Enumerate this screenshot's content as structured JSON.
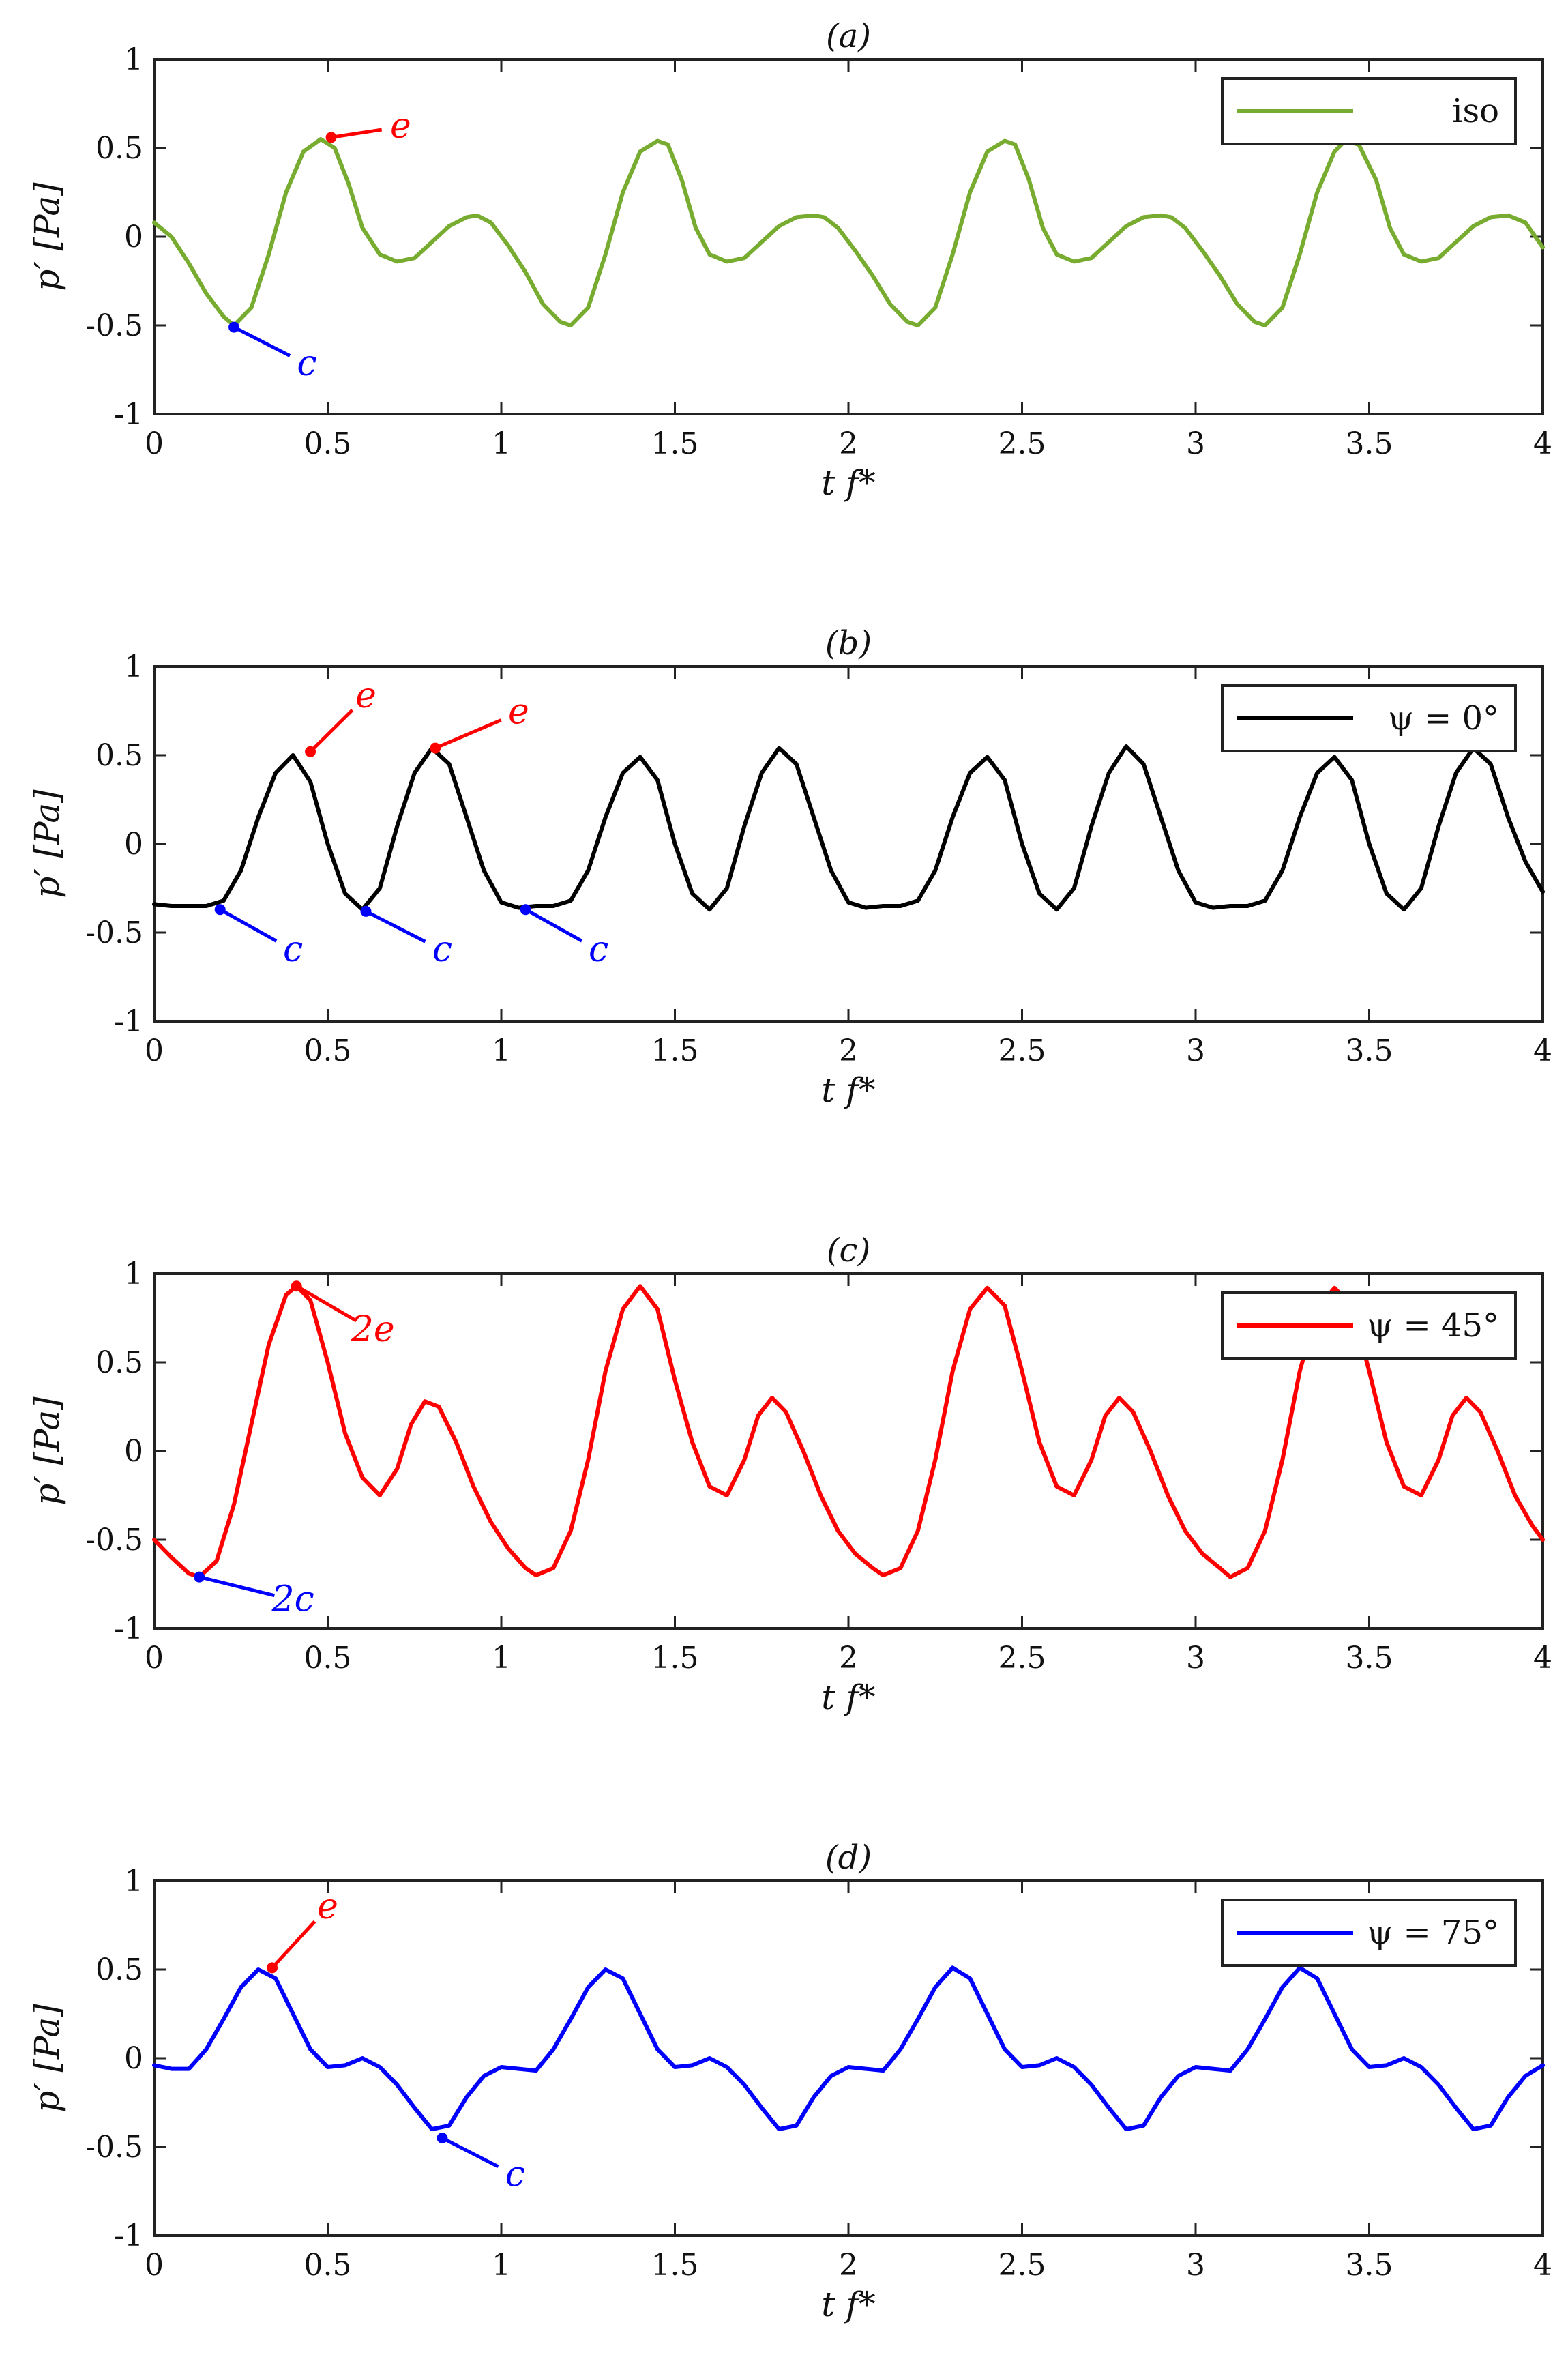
{
  "chart_data": [
    {
      "type": "line",
      "title": "(a)",
      "xlabel": "t f*",
      "ylabel": "p′ [Pa]",
      "xlim": [
        0,
        4
      ],
      "ylim": [
        -1,
        1
      ],
      "xticks": [
        "0",
        "0.5",
        "1",
        "1.5",
        "2",
        "2.5",
        "3",
        "3.5",
        "4"
      ],
      "yticks": [
        "1",
        "0.5",
        "0",
        "-0.5",
        "-1"
      ],
      "legend": "top-right",
      "series": [
        {
          "name": "iso",
          "color": "#77ac30",
          "x": [
            0,
            0.05,
            0.1,
            0.15,
            0.2,
            0.23,
            0.28,
            0.33,
            0.38,
            0.43,
            0.48,
            0.52,
            0.56,
            0.6,
            0.65,
            0.7,
            0.75,
            0.8,
            0.85,
            0.9,
            0.93,
            0.97,
            1.02,
            1.07,
            1.12,
            1.17,
            1.2,
            1.25,
            1.3,
            1.35,
            1.4,
            1.45,
            1.48,
            1.52,
            1.56,
            1.6,
            1.65,
            1.7,
            1.75,
            1.8,
            1.85,
            1.9,
            1.93,
            1.97,
            2.02,
            2.07,
            2.12,
            2.17,
            2.2,
            2.25,
            2.3,
            2.35,
            2.4,
            2.45,
            2.48,
            2.52,
            2.56,
            2.6,
            2.65,
            2.7,
            2.75,
            2.8,
            2.85,
            2.9,
            2.93,
            2.97,
            3.02,
            3.07,
            3.12,
            3.17,
            3.2,
            3.25,
            3.3,
            3.35,
            3.4,
            3.43,
            3.47,
            3.52,
            3.56,
            3.6,
            3.65,
            3.7,
            3.75,
            3.8,
            3.85,
            3.9,
            3.95,
            4.0
          ],
          "y": [
            0.08,
            0.0,
            -0.15,
            -0.32,
            -0.45,
            -0.5,
            -0.4,
            -0.1,
            0.25,
            0.48,
            0.55,
            0.5,
            0.3,
            0.05,
            -0.1,
            -0.14,
            -0.12,
            -0.03,
            0.06,
            0.11,
            0.12,
            0.08,
            -0.05,
            -0.2,
            -0.38,
            -0.48,
            -0.5,
            -0.4,
            -0.1,
            0.25,
            0.48,
            0.54,
            0.52,
            0.32,
            0.05,
            -0.1,
            -0.14,
            -0.12,
            -0.03,
            0.06,
            0.11,
            0.12,
            0.11,
            0.05,
            -0.08,
            -0.22,
            -0.38,
            -0.48,
            -0.5,
            -0.4,
            -0.1,
            0.25,
            0.48,
            0.54,
            0.52,
            0.32,
            0.05,
            -0.1,
            -0.14,
            -0.12,
            -0.03,
            0.06,
            0.11,
            0.12,
            0.11,
            0.05,
            -0.08,
            -0.22,
            -0.38,
            -0.48,
            -0.5,
            -0.4,
            -0.1,
            0.25,
            0.48,
            0.54,
            0.52,
            0.32,
            0.05,
            -0.1,
            -0.14,
            -0.12,
            -0.03,
            0.06,
            0.11,
            0.12,
            0.08,
            -0.06
          ]
        }
      ],
      "annotations": [
        {
          "text": "e",
          "color": "#ff0000",
          "at": [
            0.51,
            0.56
          ],
          "label_at": [
            0.71,
            0.62
          ]
        },
        {
          "text": "c",
          "color": "#0000ff",
          "at": [
            0.23,
            -0.51
          ],
          "label_at": [
            0.44,
            -0.72
          ]
        }
      ]
    },
    {
      "type": "line",
      "title": "(b)",
      "xlabel": "t f*",
      "ylabel": "p′ [Pa]",
      "xlim": [
        0,
        4
      ],
      "ylim": [
        -1,
        1
      ],
      "xticks": [
        "0",
        "0.5",
        "1",
        "1.5",
        "2",
        "2.5",
        "3",
        "3.5",
        "4"
      ],
      "yticks": [
        "1",
        "0.5",
        "0",
        "-0.5",
        "-1"
      ],
      "legend": "top-right",
      "series": [
        {
          "name": "ψ = 0°",
          "color": "#000000",
          "x": [
            0,
            0.05,
            0.1,
            0.15,
            0.2,
            0.25,
            0.3,
            0.35,
            0.4,
            0.45,
            0.5,
            0.55,
            0.6,
            0.65,
            0.7,
            0.75,
            0.8,
            0.85,
            0.9,
            0.95,
            1.0,
            1.05,
            1.1,
            1.15,
            1.2,
            1.25,
            1.3,
            1.35,
            1.4,
            1.45,
            1.5,
            1.55,
            1.6,
            1.65,
            1.7,
            1.75,
            1.8,
            1.85,
            1.9,
            1.95,
            2.0,
            2.05,
            2.1,
            2.15,
            2.2,
            2.25,
            2.3,
            2.35,
            2.4,
            2.45,
            2.5,
            2.55,
            2.6,
            2.65,
            2.7,
            2.75,
            2.8,
            2.85,
            2.9,
            2.95,
            3.0,
            3.05,
            3.1,
            3.15,
            3.2,
            3.25,
            3.3,
            3.35,
            3.4,
            3.45,
            3.5,
            3.55,
            3.6,
            3.65,
            3.7,
            3.75,
            3.8,
            3.85,
            3.9,
            3.95,
            4.0
          ],
          "y": [
            -0.34,
            -0.35,
            -0.35,
            -0.35,
            -0.32,
            -0.15,
            0.15,
            0.4,
            0.5,
            0.35,
            0.0,
            -0.28,
            -0.37,
            -0.25,
            0.1,
            0.4,
            0.54,
            0.45,
            0.15,
            -0.15,
            -0.33,
            -0.36,
            -0.35,
            -0.35,
            -0.32,
            -0.15,
            0.15,
            0.4,
            0.49,
            0.36,
            0.0,
            -0.28,
            -0.37,
            -0.25,
            0.1,
            0.4,
            0.54,
            0.45,
            0.15,
            -0.15,
            -0.33,
            -0.36,
            -0.35,
            -0.35,
            -0.32,
            -0.15,
            0.15,
            0.4,
            0.49,
            0.36,
            0.0,
            -0.28,
            -0.37,
            -0.25,
            0.1,
            0.4,
            0.55,
            0.45,
            0.15,
            -0.15,
            -0.33,
            -0.36,
            -0.35,
            -0.35,
            -0.32,
            -0.15,
            0.15,
            0.4,
            0.49,
            0.36,
            0.0,
            -0.28,
            -0.37,
            -0.25,
            0.1,
            0.4,
            0.54,
            0.45,
            0.15,
            -0.1,
            -0.27
          ]
        }
      ],
      "annotations": [
        {
          "text": "e",
          "color": "#ff0000",
          "at": [
            0.45,
            0.52
          ],
          "label_at": [
            0.61,
            0.83
          ]
        },
        {
          "text": "e",
          "color": "#ff0000",
          "at": [
            0.81,
            0.54
          ],
          "label_at": [
            1.05,
            0.74
          ]
        },
        {
          "text": "c",
          "color": "#0000ff",
          "at": [
            0.19,
            -0.37
          ],
          "label_at": [
            0.4,
            -0.6
          ]
        },
        {
          "text": "c",
          "color": "#0000ff",
          "at": [
            0.61,
            -0.38
          ],
          "label_at": [
            0.83,
            -0.6
          ]
        },
        {
          "text": "c",
          "color": "#0000ff",
          "at": [
            1.07,
            -0.37
          ],
          "label_at": [
            1.28,
            -0.6
          ]
        }
      ]
    },
    {
      "type": "line",
      "title": "(c)",
      "xlabel": "t f*",
      "ylabel": "p′ [Pa]",
      "xlim": [
        0,
        4
      ],
      "ylim": [
        -1,
        1
      ],
      "xticks": [
        "0",
        "0.5",
        "1",
        "1.5",
        "2",
        "2.5",
        "3",
        "3.5",
        "4"
      ],
      "yticks": [
        "1",
        "0.5",
        "0",
        "-0.5",
        "-1"
      ],
      "legend": "top-right",
      "series": [
        {
          "name": "ψ = 45°",
          "color": "#ff0000",
          "x": [
            0,
            0.05,
            0.1,
            0.13,
            0.18,
            0.23,
            0.28,
            0.33,
            0.38,
            0.41,
            0.45,
            0.5,
            0.55,
            0.6,
            0.65,
            0.7,
            0.74,
            0.78,
            0.82,
            0.87,
            0.92,
            0.97,
            1.02,
            1.07,
            1.1,
            1.15,
            1.2,
            1.25,
            1.3,
            1.35,
            1.4,
            1.45,
            1.5,
            1.55,
            1.6,
            1.65,
            1.7,
            1.74,
            1.78,
            1.82,
            1.87,
            1.92,
            1.97,
            2.02,
            2.07,
            2.1,
            2.15,
            2.2,
            2.25,
            2.3,
            2.35,
            2.4,
            2.45,
            2.5,
            2.55,
            2.6,
            2.65,
            2.7,
            2.74,
            2.78,
            2.82,
            2.87,
            2.92,
            2.97,
            3.02,
            3.07,
            3.1,
            3.15,
            3.2,
            3.25,
            3.3,
            3.35,
            3.4,
            3.45,
            3.5,
            3.55,
            3.6,
            3.65,
            3.7,
            3.74,
            3.78,
            3.82,
            3.87,
            3.92,
            3.97,
            4.0
          ],
          "y": [
            -0.5,
            -0.6,
            -0.69,
            -0.71,
            -0.62,
            -0.3,
            0.15,
            0.6,
            0.88,
            0.93,
            0.85,
            0.5,
            0.1,
            -0.15,
            -0.25,
            -0.1,
            0.15,
            0.28,
            0.25,
            0.05,
            -0.2,
            -0.4,
            -0.55,
            -0.66,
            -0.7,
            -0.66,
            -0.45,
            -0.05,
            0.45,
            0.8,
            0.93,
            0.8,
            0.4,
            0.05,
            -0.2,
            -0.25,
            -0.05,
            0.2,
            0.3,
            0.22,
            0.0,
            -0.25,
            -0.45,
            -0.58,
            -0.66,
            -0.7,
            -0.66,
            -0.45,
            -0.05,
            0.45,
            0.8,
            0.92,
            0.82,
            0.45,
            0.05,
            -0.2,
            -0.25,
            -0.05,
            0.2,
            0.3,
            0.22,
            0.0,
            -0.25,
            -0.45,
            -0.58,
            -0.66,
            -0.71,
            -0.66,
            -0.45,
            -0.05,
            0.45,
            0.8,
            0.92,
            0.82,
            0.45,
            0.05,
            -0.2,
            -0.25,
            -0.05,
            0.2,
            0.3,
            0.22,
            0.0,
            -0.25,
            -0.42,
            -0.5
          ]
        }
      ],
      "annotations": [
        {
          "text": "2e",
          "color": "#ff0000",
          "at": [
            0.41,
            0.93
          ],
          "label_at": [
            0.63,
            0.68
          ]
        },
        {
          "text": "2c",
          "color": "#0000ff",
          "at": [
            0.13,
            -0.71
          ],
          "label_at": [
            0.4,
            -0.84
          ]
        }
      ]
    },
    {
      "type": "line",
      "title": "(d)",
      "xlabel": "t f*",
      "ylabel": "p′ [Pa]",
      "xlim": [
        0,
        4
      ],
      "ylim": [
        -1,
        1
      ],
      "xticks": [
        "0",
        "0.5",
        "1",
        "1.5",
        "2",
        "2.5",
        "3",
        "3.5",
        "4"
      ],
      "yticks": [
        "1",
        "0.5",
        "0",
        "-0.5",
        "-1"
      ],
      "legend": "top-right",
      "series": [
        {
          "name": "ψ = 75°",
          "color": "#0000ff",
          "x": [
            0,
            0.05,
            0.1,
            0.15,
            0.2,
            0.25,
            0.3,
            0.35,
            0.4,
            0.45,
            0.5,
            0.55,
            0.6,
            0.65,
            0.7,
            0.75,
            0.8,
            0.85,
            0.9,
            0.95,
            1.0,
            1.05,
            1.1,
            1.15,
            1.2,
            1.25,
            1.3,
            1.35,
            1.4,
            1.45,
            1.5,
            1.55,
            1.6,
            1.65,
            1.7,
            1.75,
            1.8,
            1.85,
            1.9,
            1.95,
            2.0,
            2.05,
            2.1,
            2.15,
            2.2,
            2.25,
            2.3,
            2.35,
            2.4,
            2.45,
            2.5,
            2.55,
            2.6,
            2.65,
            2.7,
            2.75,
            2.8,
            2.85,
            2.9,
            2.95,
            3.0,
            3.05,
            3.1,
            3.15,
            3.2,
            3.25,
            3.3,
            3.35,
            3.4,
            3.45,
            3.5,
            3.55,
            3.6,
            3.65,
            3.7,
            3.75,
            3.8,
            3.85,
            3.9,
            3.95,
            4.0
          ],
          "y": [
            -0.04,
            -0.06,
            -0.06,
            0.05,
            0.22,
            0.4,
            0.5,
            0.45,
            0.25,
            0.05,
            -0.05,
            -0.04,
            0.0,
            -0.05,
            -0.15,
            -0.28,
            -0.4,
            -0.38,
            -0.22,
            -0.1,
            -0.05,
            -0.06,
            -0.07,
            0.05,
            0.22,
            0.4,
            0.5,
            0.45,
            0.25,
            0.05,
            -0.05,
            -0.04,
            0.0,
            -0.05,
            -0.15,
            -0.28,
            -0.4,
            -0.38,
            -0.22,
            -0.1,
            -0.05,
            -0.06,
            -0.07,
            0.05,
            0.22,
            0.4,
            0.51,
            0.45,
            0.25,
            0.05,
            -0.05,
            -0.04,
            0.0,
            -0.05,
            -0.15,
            -0.28,
            -0.4,
            -0.38,
            -0.22,
            -0.1,
            -0.05,
            -0.06,
            -0.07,
            0.05,
            0.22,
            0.4,
            0.51,
            0.45,
            0.25,
            0.05,
            -0.05,
            -0.04,
            0.0,
            -0.05,
            -0.15,
            -0.28,
            -0.4,
            -0.38,
            -0.22,
            -0.1,
            -0.04
          ]
        }
      ],
      "annotations": [
        {
          "text": "e",
          "color": "#ff0000",
          "at": [
            0.34,
            0.51
          ],
          "label_at": [
            0.5,
            0.85
          ]
        },
        {
          "text": "c",
          "color": "#0000ff",
          "at": [
            0.83,
            -0.45
          ],
          "label_at": [
            1.04,
            -0.66
          ]
        }
      ]
    }
  ]
}
